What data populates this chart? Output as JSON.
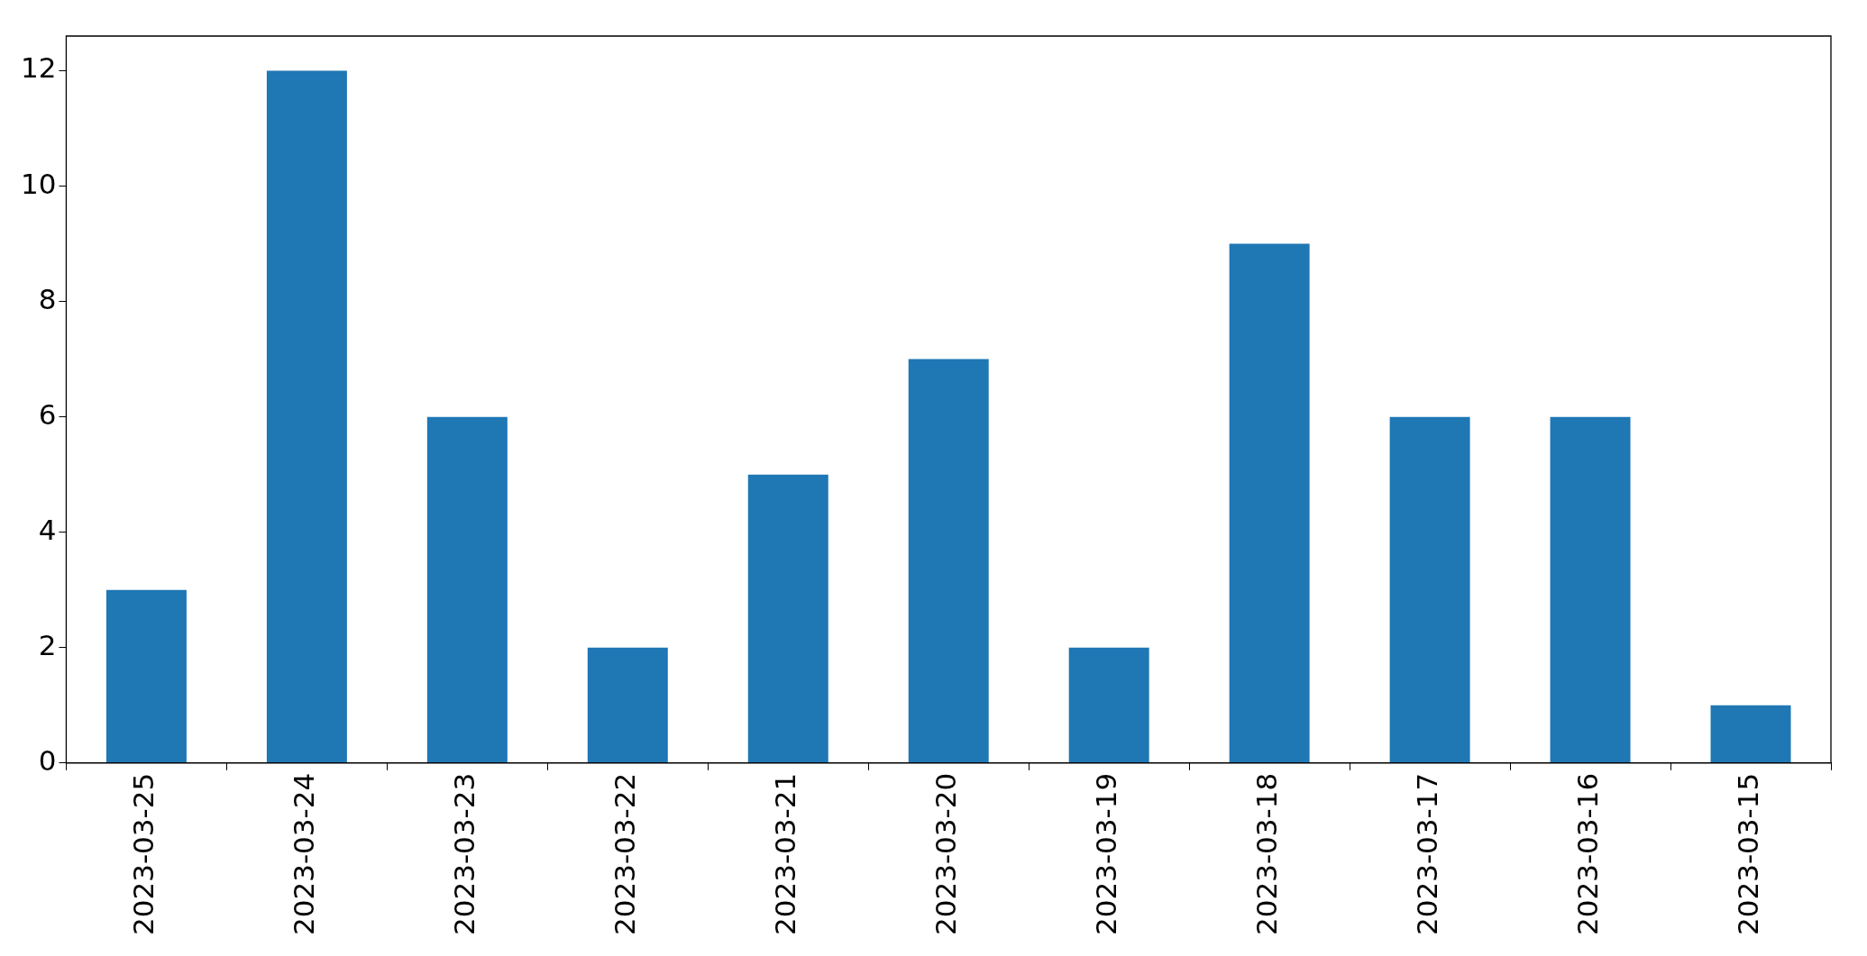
{
  "chart_data": {
    "type": "bar",
    "categories": [
      "2023-03-25",
      "2023-03-24",
      "2023-03-23",
      "2023-03-22",
      "2023-03-21",
      "2023-03-20",
      "2023-03-19",
      "2023-03-18",
      "2023-03-17",
      "2023-03-16",
      "2023-03-15"
    ],
    "values": [
      3,
      12,
      6,
      2,
      5,
      7,
      2,
      9,
      6,
      6,
      1
    ],
    "color": "#1f77b4",
    "ylim": [
      0,
      12.6
    ],
    "yticks": [
      0,
      2,
      4,
      6,
      8,
      10,
      12
    ],
    "grid": false,
    "legend": false
  }
}
